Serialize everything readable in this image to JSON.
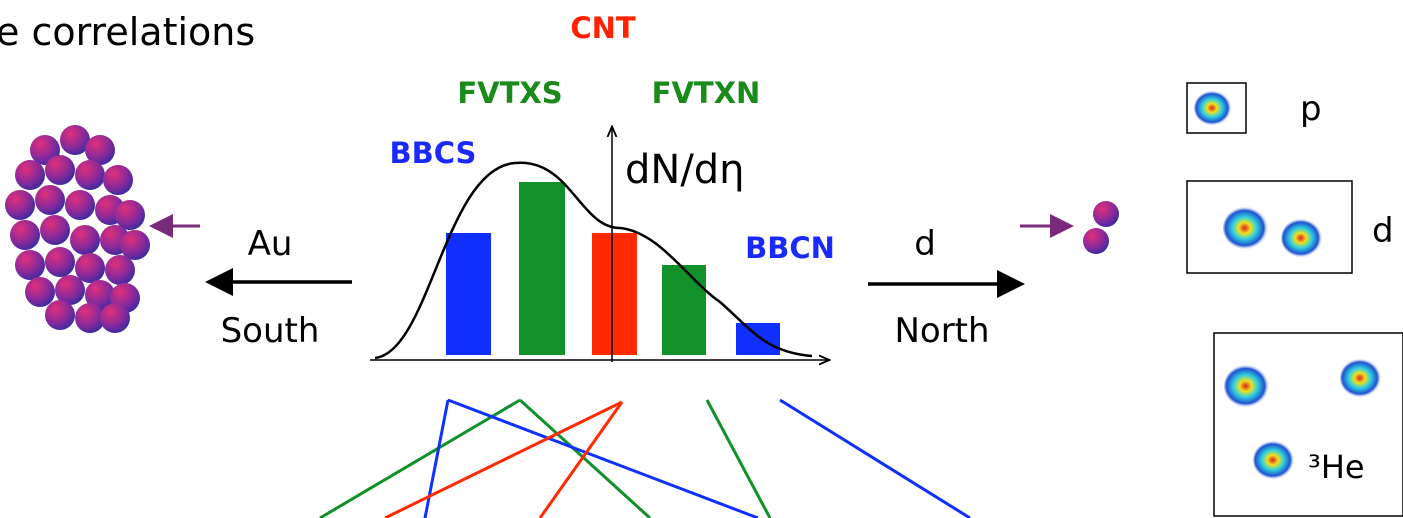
{
  "title": "e correlations",
  "detectors": {
    "center": "CNT",
    "fvtx_south": "FVTXS",
    "fvtx_north": "FVTXN",
    "bbc_south": "BBCS",
    "bbc_north": "BBCN"
  },
  "axis_label": "dN/dη",
  "beams": {
    "south": {
      "species": "Au",
      "direction": "South"
    },
    "north": {
      "species": "d",
      "direction": "North"
    }
  },
  "projectiles": [
    "p",
    "d",
    "³He"
  ]
}
